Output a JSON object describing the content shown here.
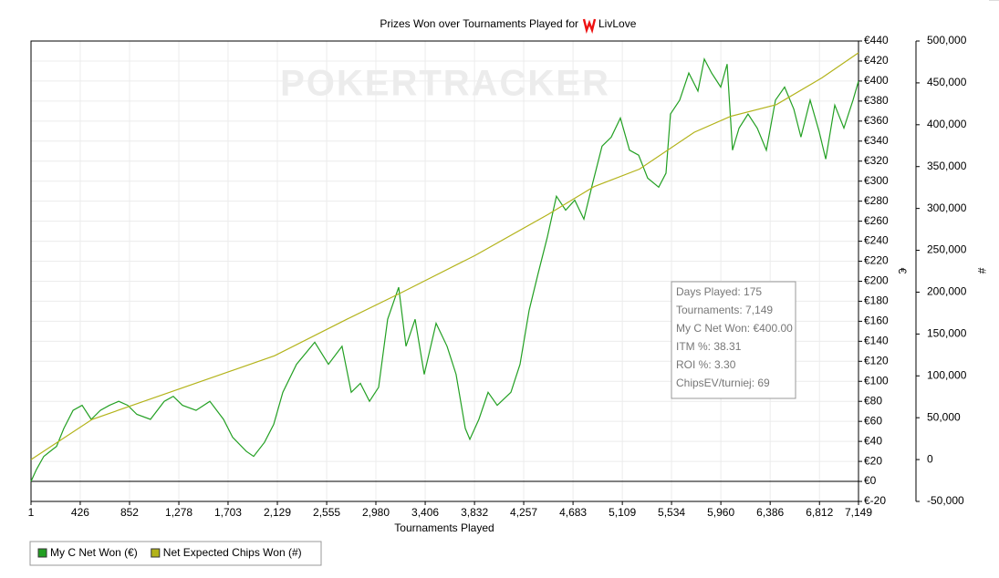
{
  "chart_data": {
    "type": "line",
    "title": "Prizes Won over Tournaments Played for",
    "title_player": "LivLove",
    "watermark": "POKERTRACKER",
    "xlabel": "Tournaments Played",
    "ylabel": "€",
    "y2label": "#",
    "grid": true,
    "xlim": [
      1,
      7149
    ],
    "xticks": [
      1,
      426,
      852,
      {
        "value": 1278,
        "label": "1,278"
      },
      {
        "value": 1703,
        "label": "1,703"
      },
      {
        "value": 2129,
        "label": "2,129"
      },
      {
        "value": 2555,
        "label": "2,555"
      },
      {
        "value": 2980,
        "label": "2,980"
      },
      {
        "value": 3406,
        "label": "3,406"
      },
      {
        "value": 3832,
        "label": "3,832"
      },
      {
        "value": 4257,
        "label": "4,257"
      },
      {
        "value": 4683,
        "label": "4,683"
      },
      {
        "value": 5109,
        "label": "5,109"
      },
      {
        "value": 5534,
        "label": "5,534"
      },
      {
        "value": 5960,
        "label": "5,960"
      },
      {
        "value": 6386,
        "label": "6,386"
      },
      {
        "value": 6812,
        "label": "6,812"
      },
      {
        "value": 7149,
        "label": "7,149"
      }
    ],
    "ylim": [
      -20,
      440
    ],
    "yticks": [
      {
        "value": -20,
        "label": "€-20"
      },
      {
        "value": 0,
        "label": "€0"
      },
      {
        "value": 20,
        "label": "€20"
      },
      {
        "value": 40,
        "label": "€40"
      },
      {
        "value": 60,
        "label": "€60"
      },
      {
        "value": 80,
        "label": "€80"
      },
      {
        "value": 100,
        "label": "€100"
      },
      {
        "value": 120,
        "label": "€120"
      },
      {
        "value": 140,
        "label": "€140"
      },
      {
        "value": 160,
        "label": "€160"
      },
      {
        "value": 180,
        "label": "€180"
      },
      {
        "value": 200,
        "label": "€200"
      },
      {
        "value": 220,
        "label": "€220"
      },
      {
        "value": 240,
        "label": "€240"
      },
      {
        "value": 260,
        "label": "€260"
      },
      {
        "value": 280,
        "label": "€280"
      },
      {
        "value": 300,
        "label": "€300"
      },
      {
        "value": 320,
        "label": "€320"
      },
      {
        "value": 340,
        "label": "€340"
      },
      {
        "value": 360,
        "label": "€360"
      },
      {
        "value": 380,
        "label": "€380"
      },
      {
        "value": 400,
        "label": "€400"
      },
      {
        "value": 420,
        "label": "€420"
      },
      {
        "value": 440,
        "label": "€440"
      }
    ],
    "y2lim": [
      -50000,
      500000
    ],
    "y2ticks": [
      {
        "value": -50000,
        "label": "-50,000"
      },
      0,
      {
        "value": 50000,
        "label": "50,000"
      },
      {
        "value": 100000,
        "label": "100,000"
      },
      {
        "value": 150000,
        "label": "150,000"
      },
      {
        "value": 200000,
        "label": "200,000"
      },
      {
        "value": 250000,
        "label": "250,000"
      },
      {
        "value": 300000,
        "label": "300,000"
      },
      {
        "value": 350000,
        "label": "350,000"
      },
      {
        "value": 400000,
        "label": "400,000"
      },
      {
        "value": 450000,
        "label": "450,000"
      },
      {
        "value": 500000,
        "label": "500,000"
      }
    ],
    "series": [
      {
        "name": "My C Net Won (€)",
        "color": "#23a023",
        "x": [
          1,
          48,
          111,
          166,
          222,
          285,
          364,
          442,
          521,
          600,
          679,
          758,
          836,
          915,
          1033,
          1152,
          1230,
          1309,
          1427,
          1546,
          1664,
          1743,
          1861,
          1924,
          2018,
          2097,
          2176,
          2294,
          2452,
          2570,
          2688,
          2767,
          2846,
          2925,
          3004,
          3082,
          3177,
          3240,
          3319,
          3398,
          3500,
          3595,
          3673,
          3752,
          3792,
          3870,
          3949,
          4028,
          4146,
          4225,
          4304,
          4382,
          4461,
          4540,
          4619,
          4698,
          4777,
          4855,
          4934,
          5013,
          5092,
          5171,
          5250,
          5328,
          5423,
          5486,
          5525,
          5604,
          5683,
          5762,
          5817,
          5880,
          5959,
          6014,
          6061,
          6117,
          6195,
          6274,
          6353,
          6432,
          6511,
          6590,
          6652,
          6731,
          6810,
          6866,
          6944,
          7023,
          7102,
          7149
        ],
        "values": [
          0,
          12,
          25,
          30,
          35,
          53,
          71,
          76,
          62,
          71,
          76,
          80,
          76,
          67,
          62,
          80,
          85,
          76,
          71,
          80,
          62,
          44,
          30,
          25,
          39,
          57,
          89,
          117,
          139,
          117,
          135,
          89,
          98,
          80,
          94,
          162,
          194,
          135,
          162,
          107,
          158,
          135,
          107,
          53,
          42,
          62,
          89,
          76,
          89,
          117,
          171,
          208,
          244,
          285,
          271,
          281,
          262,
          299,
          335,
          344,
          363,
          331,
          326,
          303,
          294,
          308,
          367,
          381,
          408,
          390,
          422,
          408,
          394,
          417,
          331,
          353,
          367,
          353,
          331,
          381,
          394,
          372,
          344,
          381,
          349,
          322,
          376,
          353,
          381,
          400
        ]
      },
      {
        "name": "Net Expected Chips Won (#)",
        "color": "#b3b31a",
        "axis": "y2",
        "x": [
          1,
          529,
          1317,
          2105,
          2735,
          3208,
          3838,
          4469,
          4863,
          5257,
          5730,
          6045,
          6439,
          6833,
          7149
        ],
        "values": [
          0,
          48000,
          86000,
          124000,
          168000,
          200000,
          244000,
          293000,
          326000,
          347000,
          391000,
          410000,
          424000,
          456000,
          486000
        ]
      }
    ],
    "stats": [
      "Days Played: 175",
      "Tournaments: 7,149",
      "My C Net Won: €400.00",
      "ITM %: 38.31",
      "ROI %: 3.30",
      "ChipsEV/turniej: 69"
    ]
  }
}
